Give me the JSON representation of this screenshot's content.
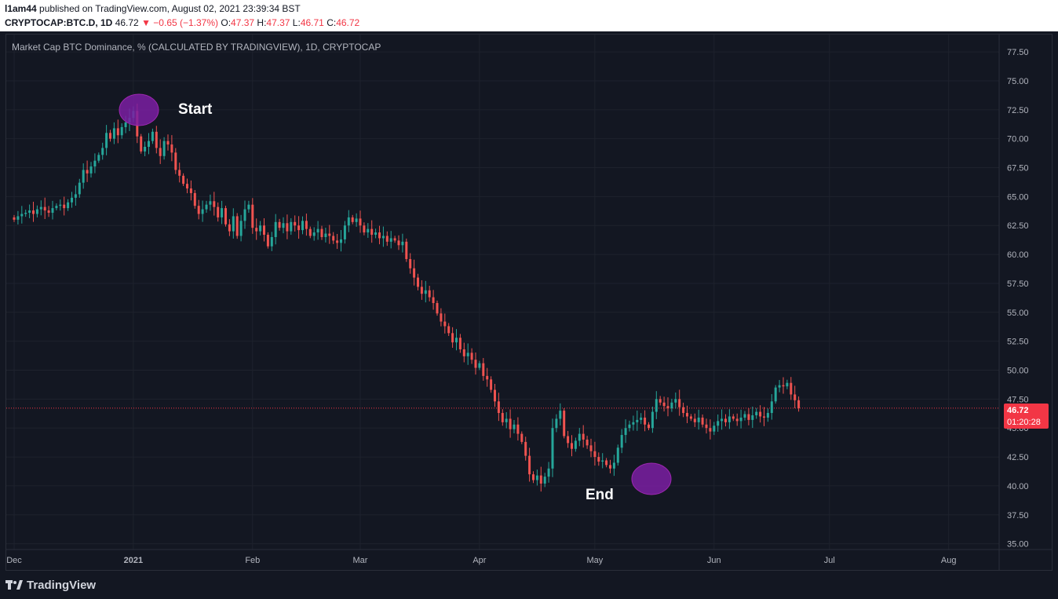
{
  "header": {
    "author": "l1am44",
    "published": "published on TradingView.com, August 02, 2021 23:39:34 BST",
    "symbol": "CRYPTOCAP:BTC.D, 1D",
    "last": "46.72",
    "change": "−0.65 (−1.37%)",
    "open_label": "O:",
    "open": "47.37",
    "high_label": "H:",
    "high": "47.37",
    "low_label": "L:",
    "low": "46.71",
    "close_label": "C:",
    "close": "46.72"
  },
  "chart_title": "Market Cap BTC Dominance, % (CALCULATED BY TRADINGVIEW), 1D, CRYPTOCAP",
  "price_tag": {
    "price": "46.72",
    "countdown": "01:20:28"
  },
  "annotations": {
    "start": "Start",
    "end": "End"
  },
  "footer": {
    "brand": "TradingView"
  },
  "colors": {
    "up": "#26a69a",
    "down": "#ef5350",
    "ellipse": "#7b1fa2",
    "background": "#131722",
    "grid": "#1e222d",
    "last_price": "#f23645"
  },
  "chart_data": {
    "type": "candlestick",
    "title": "Market Cap BTC Dominance, % (CALCULATED BY TRADINGVIEW), 1D, CRYPTOCAP",
    "ylim": [
      34.5,
      79
    ],
    "y_ticks": [
      "35.00",
      "37.50",
      "40.00",
      "42.50",
      "45.00",
      "47.50",
      "50.00",
      "52.50",
      "55.00",
      "57.50",
      "60.00",
      "62.50",
      "65.00",
      "67.50",
      "70.00",
      "72.50",
      "75.00",
      "77.50"
    ],
    "x_ticks": [
      "Dec",
      "2021",
      "Feb",
      "Mar",
      "Apr",
      "May",
      "Jun",
      "Jul",
      "Aug"
    ],
    "x_tick_days": [
      0,
      31,
      62,
      90,
      121,
      151,
      182,
      212,
      243
    ],
    "date_start": "2020-12-01",
    "last_price": 46.72,
    "grid": true,
    "closes": [
      63.0,
      63.3,
      63.5,
      63.6,
      63.8,
      63.5,
      63.9,
      64.1,
      63.8,
      63.6,
      64.0,
      64.2,
      64.3,
      64.0,
      64.5,
      64.9,
      65.2,
      66.2,
      67.3,
      67.0,
      67.6,
      68.1,
      68.6,
      69.2,
      70.5,
      70.0,
      70.9,
      70.3,
      71.0,
      71.4,
      71.8,
      72.4,
      70.2,
      68.9,
      69.3,
      69.8,
      70.6,
      69.2,
      68.5,
      69.8,
      69.5,
      68.8,
      67.3,
      66.8,
      66.1,
      65.7,
      65.3,
      64.2,
      63.5,
      63.9,
      64.3,
      64.6,
      64.1,
      63.2,
      64.0,
      62.6,
      62.0,
      63.3,
      61.6,
      62.9,
      63.9,
      64.3,
      62.3,
      62.0,
      62.5,
      61.7,
      60.7,
      61.5,
      62.8,
      62.3,
      62.7,
      62.0,
      62.8,
      62.5,
      62.1,
      62.9,
      62.2,
      61.6,
      61.9,
      62.2,
      61.5,
      61.8,
      61.6,
      61.2,
      61.0,
      61.3,
      62.5,
      63.2,
      62.8,
      63.1,
      62.5,
      61.9,
      62.2,
      61.7,
      61.9,
      61.4,
      61.6,
      61.1,
      61.4,
      61.2,
      60.8,
      61.1,
      59.6,
      58.8,
      58.0,
      57.2,
      56.6,
      56.9,
      56.3,
      55.8,
      54.9,
      54.2,
      53.8,
      53.2,
      52.4,
      52.8,
      51.8,
      51.2,
      51.5,
      50.9,
      50.2,
      50.6,
      49.5,
      49.2,
      48.3,
      47.3,
      46.3,
      45.5,
      45.8,
      44.9,
      45.3,
      44.5,
      43.8,
      42.6,
      41.0,
      40.5,
      40.9,
      40.2,
      40.8,
      41.5,
      45.0,
      45.8,
      46.5,
      44.3,
      43.7,
      43.2,
      43.9,
      44.5,
      44.0,
      43.5,
      43.0,
      42.5,
      42.1,
      42.2,
      41.8,
      41.5,
      42.0,
      43.3,
      44.4,
      45.0,
      45.3,
      45.5,
      45.7,
      45.9,
      45.3,
      45.0,
      46.4,
      47.5,
      47.2,
      46.9,
      46.7,
      47.2,
      47.5,
      46.8,
      46.3,
      46.0,
      45.8,
      45.5,
      45.9,
      45.3,
      45.0,
      44.7,
      45.2,
      45.6,
      45.8,
      45.5,
      46.0,
      45.8,
      45.6,
      45.9,
      46.2,
      45.7,
      46.1,
      46.4,
      46.0,
      45.9,
      46.3,
      47.3,
      48.5,
      48.7,
      48.6,
      48.9,
      47.9,
      47.4,
      46.72
    ]
  }
}
